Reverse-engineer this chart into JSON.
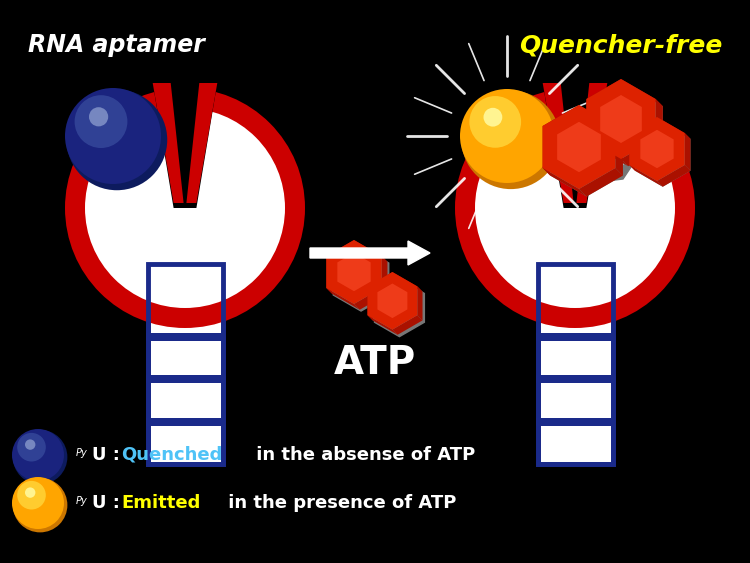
{
  "background_color": "#000000",
  "title_left": "RNA aptamer",
  "title_right": "Quencher-free",
  "title_left_color": "#ffffff",
  "title_right_color": "#ffff00",
  "atp_label": "ATP",
  "atp_label_color": "#ffffff",
  "arrow_color": "#ffffff",
  "legend_line1_circle_color": "#1a237e",
  "legend_line2_circle_color": "#ffa500",
  "legend_line1_cyan": "#4fc3f7",
  "legend_line2_yellow": "#ffff00",
  "aptamer_body_white": "#ffffff",
  "aptamer_red": "#cc0000",
  "aptamer_stem_blue": "#1a2a8a",
  "quencher_dark_blue": "#1a237e",
  "emitter_orange": "#ffa500",
  "emitter_yellow_center": "#ffdd44",
  "atp_red_dark": "#aa1100",
  "atp_red_mid": "#dd2200",
  "atp_red_light": "#ff5533",
  "atp_red_highlight": "#ff9977",
  "atp_gray_dark": "#777777",
  "atp_gray_mid": "#aaaaaa",
  "atp_gray_light": "#cccccc"
}
